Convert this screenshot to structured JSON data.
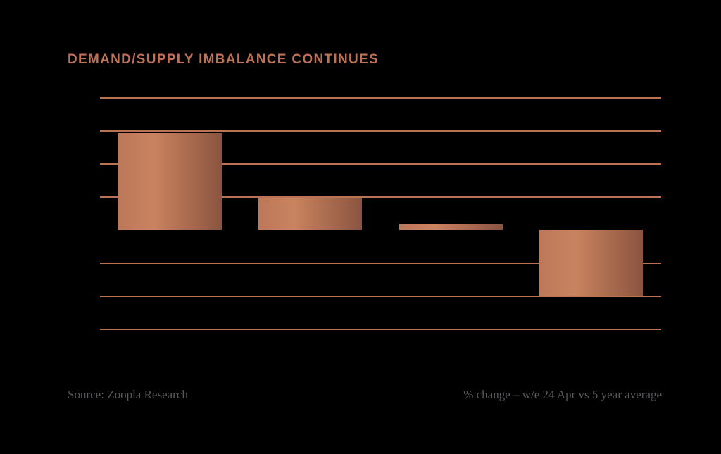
{
  "title": {
    "text": "DEMAND/SUPPLY IMBALANCE CONTINUES"
  },
  "footer": {
    "source": "Source: Zoopla Research",
    "caption": "% change – w/e 24 Apr vs 5 year average"
  },
  "colors": {
    "background": "#000000",
    "title_text": "#bd7258",
    "gridline": "#bc7355",
    "footer_text": "#58595b",
    "bar_gradient_left": "#bd785a",
    "bar_gradient_mid": "#c8835f",
    "bar_gradient_right": "#8b5440"
  },
  "chart_data": {
    "type": "bar",
    "title": "DEMAND/SUPPLY IMBALANCE CONTINUES",
    "categories": [
      "",
      "",
      "",
      ""
    ],
    "values": [
      2.93,
      0.95,
      0.2,
      -2.0
    ],
    "value_units": "gridline intervals (y-axis tick labels not visible in image)",
    "ylim": [
      -3,
      4
    ],
    "gridline_step": 1,
    "zero_line_drawn": false,
    "grid": "horizontal",
    "legend": "none",
    "xlabel": "",
    "ylabel": "",
    "caption": "% change – w/e 24 Apr vs 5 year average",
    "source": "Source: Zoopla Research"
  }
}
